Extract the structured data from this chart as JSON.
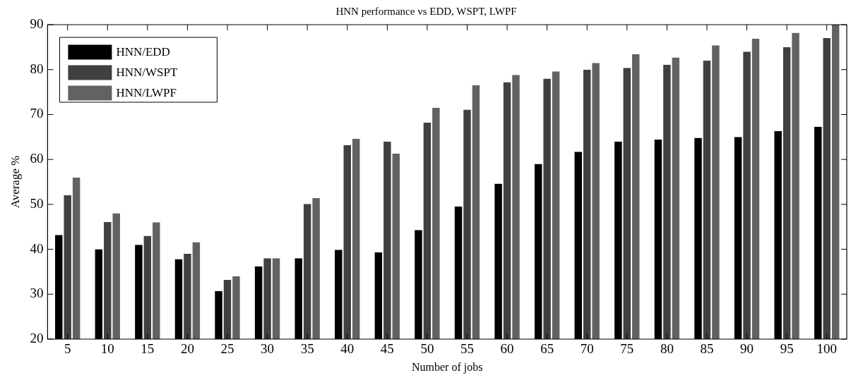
{
  "chart_data": {
    "type": "bar",
    "title": "HNN performance vs EDD, WSPT, LWPF",
    "xlabel": "Number of jobs",
    "ylabel": "Average %",
    "categories": [
      "5",
      "10",
      "15",
      "20",
      "25",
      "30",
      "35",
      "40",
      "45",
      "50",
      "55",
      "60",
      "65",
      "70",
      "75",
      "80",
      "85",
      "90",
      "95",
      "100"
    ],
    "series": [
      {
        "name": "HNN/EDD",
        "color": "#000000",
        "values": [
          43.2,
          40,
          41,
          37.8,
          30.7,
          36.2,
          38,
          39.9,
          39.3,
          44.3,
          49.5,
          54.6,
          59,
          61.7,
          64,
          64.4,
          64.8,
          65,
          66.3,
          67.3
        ]
      },
      {
        "name": "HNN/WSPT",
        "color": "#404040",
        "values": [
          52,
          46.1,
          43,
          39,
          33.2,
          38,
          50.1,
          63.2,
          64,
          68.2,
          71.1,
          77.2,
          78,
          80,
          80.4,
          81.1,
          82,
          84,
          85,
          87
        ]
      },
      {
        "name": "HNN/LWPF",
        "color": "#626262",
        "values": [
          56,
          48,
          46,
          41.6,
          34,
          38,
          51.4,
          64.6,
          61.3,
          71.5,
          76.5,
          78.8,
          79.6,
          81.5,
          83.4,
          82.7,
          85.4,
          86.9,
          88.2,
          90
        ]
      }
    ],
    "ylim": [
      20,
      90
    ],
    "yticks": [
      20,
      30,
      40,
      50,
      60,
      70,
      80,
      90
    ],
    "grid": false,
    "legend": "top left"
  }
}
